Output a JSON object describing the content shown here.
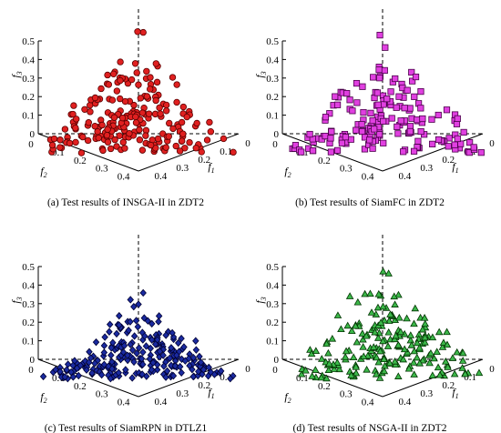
{
  "chart_data": [
    {
      "type": "scatter",
      "caption": "(a) Test results of INSGA-II in ZDT2",
      "marker": "circle",
      "color": "#e02020",
      "stroke": "#5a0000",
      "axes": {
        "f1_label": "f",
        "f1_sub": "1",
        "f2_label": "f",
        "f2_sub": "2",
        "f3_label": "f",
        "f3_sub": "3",
        "f3_ticks": [
          "0",
          "0.1",
          "0.2",
          "0.3",
          "0.4",
          "0.5"
        ],
        "f2_ticks": [
          "0",
          "0.1",
          "0.2",
          "0.3",
          "0.4"
        ],
        "f1_ticks": [
          "0.4",
          "0.3",
          "0.2",
          "0.1",
          "0"
        ]
      },
      "xlim": [
        0,
        0.5
      ],
      "ylim": [
        0,
        0.5
      ],
      "zlim": [
        0,
        0.5
      ],
      "peak_f3": 0.56,
      "n_points": 215,
      "seed": 11
    },
    {
      "type": "scatter",
      "caption": "(b) Test results of SiamFC in ZDT2",
      "marker": "square",
      "color": "#e040e0",
      "stroke": "#4a004a",
      "axes": {
        "f1_label": "f",
        "f1_sub": "1",
        "f2_label": "f",
        "f2_sub": "2",
        "f3_label": "f",
        "f3_sub": "3",
        "f3_ticks": [
          "0",
          "0.1",
          "0.2",
          "0.3",
          "0.4",
          "0.5"
        ],
        "f2_ticks": [
          "0",
          "0.1",
          "0.2",
          "0.3",
          "0.4"
        ],
        "f1_ticks": [
          "0.4",
          "0.3",
          "0.2",
          "0.1",
          "0"
        ]
      },
      "xlim": [
        0,
        0.5
      ],
      "ylim": [
        0,
        0.5
      ],
      "zlim": [
        0,
        0.5
      ],
      "peak_f3": 0.56,
      "n_points": 180,
      "seed": 23
    },
    {
      "type": "scatter",
      "caption": "(c) Test results of SiamRPN in DTLZ1",
      "marker": "diamond",
      "color": "#1a2aa0",
      "stroke": "#000033",
      "axes": {
        "f1_label": "f",
        "f1_sub": "1",
        "f2_label": "f",
        "f2_sub": "2",
        "f3_label": "f",
        "f3_sub": "3",
        "f3_ticks": [
          "0",
          "0.1",
          "0.2",
          "0.3",
          "0.4",
          "0.5"
        ],
        "f2_ticks": [
          "0",
          "0.1",
          "0.2",
          "0.3",
          "0.4"
        ],
        "f1_ticks": [
          "0.4",
          "0.3",
          "0.2",
          "0.1",
          "0"
        ]
      },
      "xlim": [
        0,
        0.5
      ],
      "ylim": [
        0,
        0.5
      ],
      "zlim": [
        0,
        0.5
      ],
      "peak_f3": 0.38,
      "n_points": 240,
      "seed": 37
    },
    {
      "type": "scatter",
      "caption": "(d) Test results of NSGA-II in ZDT2",
      "marker": "triangle",
      "color": "#3cb84a",
      "stroke": "#003300",
      "axes": {
        "f1_label": "f",
        "f1_sub": "1",
        "f2_label": "f",
        "f2_sub": "2",
        "f3_label": "f",
        "f3_sub": "3",
        "f3_ticks": [
          "0",
          "0.1",
          "0.2",
          "0.3",
          "0.4",
          "0.5"
        ],
        "f2_ticks": [
          "0",
          "0.1",
          "0.2",
          "0.3",
          "0.4"
        ],
        "f1_ticks": [
          "0.4",
          "0.3",
          "0.2",
          "0.1",
          "0"
        ]
      },
      "xlim": [
        0,
        0.5
      ],
      "ylim": [
        0,
        0.5
      ],
      "zlim": [
        0,
        0.5
      ],
      "peak_f3": 0.56,
      "n_points": 200,
      "seed": 53
    }
  ]
}
